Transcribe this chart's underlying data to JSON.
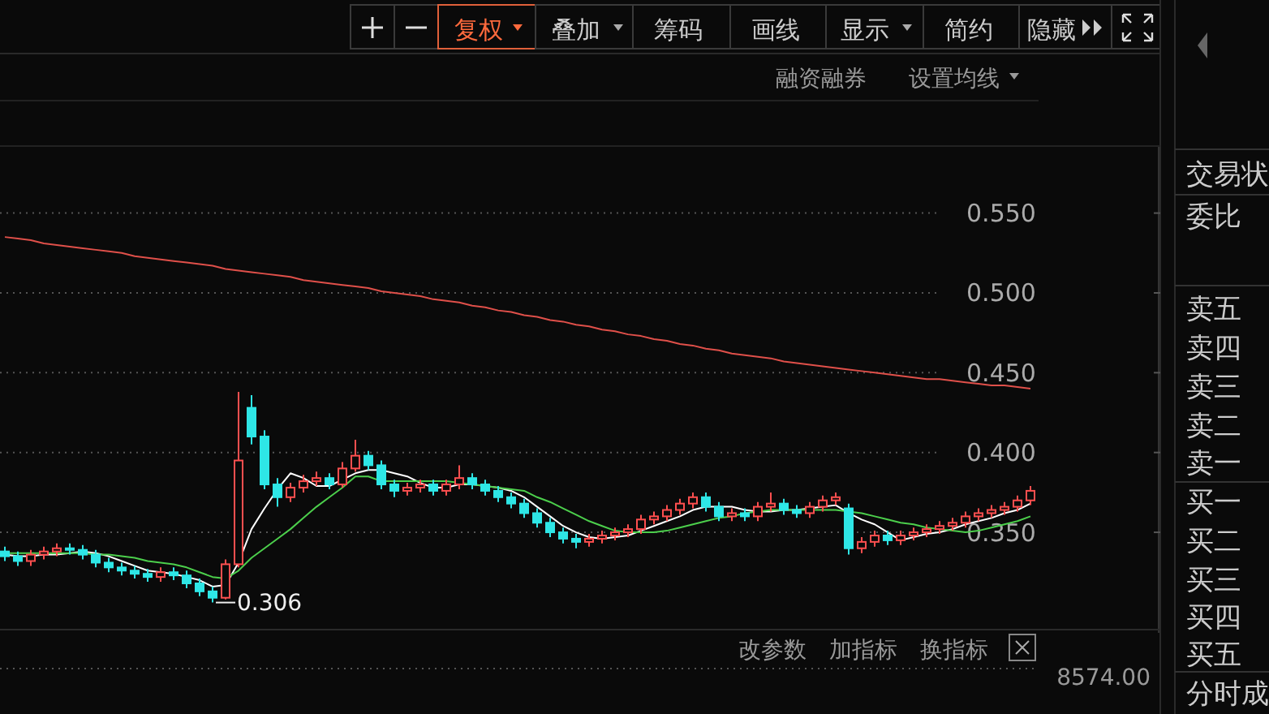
{
  "chart_data": {
    "type": "candlestick",
    "categories": [
      null,
      null,
      null,
      null,
      null,
      null,
      null,
      null,
      null,
      null,
      null,
      null,
      null,
      null,
      null,
      null,
      null,
      null,
      null,
      null,
      null,
      null,
      null,
      null,
      null,
      null,
      null,
      null,
      null,
      null,
      null,
      null,
      null,
      null,
      null,
      null,
      null,
      null,
      null,
      null,
      null,
      null,
      null,
      null,
      null,
      null,
      null,
      null,
      null,
      null,
      null,
      null,
      null,
      null,
      null,
      null,
      null,
      null,
      null,
      null,
      null,
      null,
      null,
      null,
      null,
      null,
      null,
      null,
      null,
      null,
      null,
      null,
      null,
      null,
      null,
      null,
      null,
      null,
      null,
      null
    ],
    "ohlc": [
      [
        0.338,
        0.341,
        0.332,
        0.335
      ],
      [
        0.335,
        0.338,
        0.329,
        0.332
      ],
      [
        0.332,
        0.339,
        0.329,
        0.336
      ],
      [
        0.336,
        0.341,
        0.333,
        0.338
      ],
      [
        0.338,
        0.343,
        0.335,
        0.34
      ],
      [
        0.34,
        0.343,
        0.336,
        0.339
      ],
      [
        0.339,
        0.342,
        0.333,
        0.336
      ],
      [
        0.336,
        0.339,
        0.328,
        0.331
      ],
      [
        0.331,
        0.334,
        0.325,
        0.328
      ],
      [
        0.328,
        0.331,
        0.323,
        0.326
      ],
      [
        0.326,
        0.329,
        0.321,
        0.324
      ],
      [
        0.324,
        0.327,
        0.319,
        0.322
      ],
      [
        0.322,
        0.328,
        0.319,
        0.325
      ],
      [
        0.325,
        0.328,
        0.32,
        0.323
      ],
      [
        0.323,
        0.326,
        0.315,
        0.318
      ],
      [
        0.318,
        0.321,
        0.31,
        0.313
      ],
      [
        0.313,
        0.316,
        0.306,
        0.309
      ],
      [
        0.309,
        0.333,
        0.308,
        0.33
      ],
      [
        0.33,
        0.438,
        0.328,
        0.395
      ],
      [
        0.428,
        0.436,
        0.405,
        0.41
      ],
      [
        0.41,
        0.414,
        0.377,
        0.38
      ],
      [
        0.38,
        0.384,
        0.366,
        0.372
      ],
      [
        0.372,
        0.381,
        0.369,
        0.378
      ],
      [
        0.378,
        0.386,
        0.375,
        0.382
      ],
      [
        0.382,
        0.388,
        0.379,
        0.384
      ],
      [
        0.384,
        0.387,
        0.377,
        0.38
      ],
      [
        0.38,
        0.394,
        0.378,
        0.39
      ],
      [
        0.39,
        0.408,
        0.388,
        0.398
      ],
      [
        0.398,
        0.401,
        0.389,
        0.392
      ],
      [
        0.392,
        0.395,
        0.377,
        0.38
      ],
      [
        0.38,
        0.383,
        0.372,
        0.376
      ],
      [
        0.376,
        0.381,
        0.373,
        0.378
      ],
      [
        0.378,
        0.383,
        0.375,
        0.38
      ],
      [
        0.38,
        0.383,
        0.373,
        0.376
      ],
      [
        0.376,
        0.383,
        0.373,
        0.38
      ],
      [
        0.38,
        0.392,
        0.377,
        0.384
      ],
      [
        0.384,
        0.387,
        0.377,
        0.38
      ],
      [
        0.38,
        0.383,
        0.373,
        0.376
      ],
      [
        0.376,
        0.379,
        0.369,
        0.372
      ],
      [
        0.372,
        0.375,
        0.365,
        0.368
      ],
      [
        0.368,
        0.371,
        0.359,
        0.362
      ],
      [
        0.362,
        0.365,
        0.353,
        0.356
      ],
      [
        0.356,
        0.359,
        0.347,
        0.35
      ],
      [
        0.35,
        0.353,
        0.343,
        0.346
      ],
      [
        0.346,
        0.349,
        0.34,
        0.344
      ],
      [
        0.344,
        0.349,
        0.341,
        0.346
      ],
      [
        0.346,
        0.351,
        0.343,
        0.348
      ],
      [
        0.348,
        0.353,
        0.345,
        0.35
      ],
      [
        0.35,
        0.355,
        0.347,
        0.352
      ],
      [
        0.352,
        0.361,
        0.349,
        0.358
      ],
      [
        0.358,
        0.363,
        0.355,
        0.36
      ],
      [
        0.36,
        0.367,
        0.357,
        0.364
      ],
      [
        0.364,
        0.371,
        0.361,
        0.368
      ],
      [
        0.368,
        0.375,
        0.365,
        0.372
      ],
      [
        0.372,
        0.375,
        0.363,
        0.366
      ],
      [
        0.366,
        0.369,
        0.357,
        0.36
      ],
      [
        0.36,
        0.365,
        0.357,
        0.362
      ],
      [
        0.362,
        0.365,
        0.357,
        0.36
      ],
      [
        0.36,
        0.369,
        0.357,
        0.366
      ],
      [
        0.366,
        0.375,
        0.363,
        0.368
      ],
      [
        0.368,
        0.371,
        0.361,
        0.364
      ],
      [
        0.364,
        0.367,
        0.359,
        0.362
      ],
      [
        0.362,
        0.369,
        0.359,
        0.366
      ],
      [
        0.366,
        0.373,
        0.363,
        0.37
      ],
      [
        0.37,
        0.375,
        0.367,
        0.372
      ],
      [
        0.365,
        0.368,
        0.336,
        0.34
      ],
      [
        0.34,
        0.347,
        0.337,
        0.344
      ],
      [
        0.344,
        0.351,
        0.341,
        0.348
      ],
      [
        0.348,
        0.351,
        0.342,
        0.345
      ],
      [
        0.345,
        0.351,
        0.342,
        0.348
      ],
      [
        0.348,
        0.353,
        0.345,
        0.35
      ],
      [
        0.35,
        0.355,
        0.347,
        0.352
      ],
      [
        0.352,
        0.357,
        0.349,
        0.354
      ],
      [
        0.354,
        0.359,
        0.351,
        0.356
      ],
      [
        0.356,
        0.363,
        0.353,
        0.36
      ],
      [
        0.36,
        0.365,
        0.357,
        0.362
      ],
      [
        0.362,
        0.367,
        0.359,
        0.364
      ],
      [
        0.364,
        0.369,
        0.361,
        0.366
      ],
      [
        0.366,
        0.373,
        0.363,
        0.37
      ],
      [
        0.37,
        0.379,
        0.367,
        0.376
      ]
    ],
    "colors": [
      "#2ee6e6",
      "#2ee6e6",
      "#ff4f4f",
      "#ff4f4f",
      "#ff4f4f",
      "#2ee6e6",
      "#2ee6e6",
      "#2ee6e6",
      "#2ee6e6",
      "#2ee6e6",
      "#2ee6e6",
      "#2ee6e6",
      "#ff4f4f",
      "#2ee6e6",
      "#2ee6e6",
      "#2ee6e6",
      "#2ee6e6",
      "#ff4f4f",
      "#ff4f4f",
      "#2ee6e6",
      "#2ee6e6",
      "#2ee6e6",
      "#ff4f4f",
      "#ff4f4f",
      "#ff4f4f",
      "#2ee6e6",
      "#ff4f4f",
      "#ff4f4f",
      "#2ee6e6",
      "#2ee6e6",
      "#2ee6e6",
      "#ff4f4f",
      "#ff4f4f",
      "#2ee6e6",
      "#ff4f4f",
      "#ff4f4f",
      "#2ee6e6",
      "#2ee6e6",
      "#2ee6e6",
      "#2ee6e6",
      "#2ee6e6",
      "#2ee6e6",
      "#2ee6e6",
      "#2ee6e6",
      "#2ee6e6",
      "#ff4f4f",
      "#ff4f4f",
      "#ff4f4f",
      "#ff4f4f",
      "#ff4f4f",
      "#ff4f4f",
      "#ff4f4f",
      "#ff4f4f",
      "#ff4f4f",
      "#2ee6e6",
      "#2ee6e6",
      "#ff4f4f",
      "#2ee6e6",
      "#ff4f4f",
      "#ff4f4f",
      "#2ee6e6",
      "#2ee6e6",
      "#ff4f4f",
      "#ff4f4f",
      "#ff4f4f",
      "#2ee6e6",
      "#ff4f4f",
      "#ff4f4f",
      "#2ee6e6",
      "#ff4f4f",
      "#ff4f4f",
      "#ff4f4f",
      "#ff4f4f",
      "#ff4f4f",
      "#ff4f4f",
      "#ff4f4f",
      "#ff4f4f",
      "#ff4f4f",
      "#ff4f4f",
      "#ff4f4f"
    ],
    "series": [
      {
        "type": "line",
        "color": "#ffffff",
        "values": [
          0.336,
          0.335,
          0.335,
          0.336,
          0.336,
          0.337,
          0.338,
          0.337,
          0.335,
          0.332,
          0.329,
          0.326,
          0.325,
          0.324,
          0.322,
          0.32,
          0.316,
          0.317,
          0.331,
          0.352,
          0.365,
          0.377,
          0.387,
          0.384,
          0.379,
          0.379,
          0.383,
          0.387,
          0.389,
          0.389,
          0.387,
          0.385,
          0.381,
          0.378,
          0.378,
          0.38,
          0.38,
          0.379,
          0.378,
          0.376,
          0.372,
          0.366,
          0.36,
          0.354,
          0.35,
          0.347,
          0.346,
          0.347,
          0.348,
          0.351,
          0.354,
          0.357,
          0.36,
          0.364,
          0.366,
          0.366,
          0.366,
          0.364,
          0.363,
          0.363,
          0.364,
          0.364,
          0.365,
          0.366,
          0.367,
          0.362,
          0.358,
          0.355,
          0.35,
          0.345,
          0.347,
          0.349,
          0.35,
          0.352,
          0.355,
          0.357,
          0.359,
          0.362,
          0.364,
          0.368
        ]
      },
      {
        "type": "line",
        "color": "#4ccf4c",
        "values": [
          0.337,
          0.337,
          0.337,
          0.337,
          0.337,
          0.337,
          0.337,
          0.336,
          0.336,
          0.335,
          0.334,
          0.332,
          0.331,
          0.33,
          0.328,
          0.325,
          0.322,
          0.321,
          0.326,
          0.334,
          0.34,
          0.346,
          0.352,
          0.359,
          0.366,
          0.372,
          0.378,
          0.385,
          0.385,
          0.382,
          0.382,
          0.382,
          0.382,
          0.382,
          0.382,
          0.381,
          0.38,
          0.379,
          0.378,
          0.377,
          0.376,
          0.372,
          0.369,
          0.365,
          0.361,
          0.357,
          0.354,
          0.351,
          0.35,
          0.35,
          0.35,
          0.351,
          0.353,
          0.355,
          0.357,
          0.359,
          0.36,
          0.362,
          0.363,
          0.364,
          0.364,
          0.364,
          0.364,
          0.364,
          0.364,
          0.363,
          0.362,
          0.36,
          0.358,
          0.356,
          0.355,
          0.353,
          0.352,
          0.351,
          0.35,
          0.351,
          0.353,
          0.355,
          0.357,
          0.36
        ]
      },
      {
        "type": "line",
        "color": "#e0504a",
        "values": [
          0.535,
          0.534,
          0.533,
          0.531,
          0.53,
          0.529,
          0.528,
          0.527,
          0.526,
          0.525,
          0.523,
          0.522,
          0.521,
          0.52,
          0.519,
          0.518,
          0.517,
          0.515,
          0.514,
          0.513,
          0.512,
          0.511,
          0.51,
          0.508,
          0.507,
          0.506,
          0.505,
          0.504,
          0.503,
          0.501,
          0.5,
          0.499,
          0.498,
          0.496,
          0.495,
          0.494,
          0.492,
          0.491,
          0.489,
          0.488,
          0.486,
          0.485,
          0.483,
          0.482,
          0.48,
          0.479,
          0.477,
          0.476,
          0.474,
          0.473,
          0.471,
          0.47,
          0.468,
          0.467,
          0.465,
          0.464,
          0.462,
          0.461,
          0.46,
          0.459,
          0.457,
          0.456,
          0.455,
          0.454,
          0.453,
          0.452,
          0.451,
          0.45,
          0.449,
          0.448,
          0.447,
          0.446,
          0.446,
          0.445,
          0.444,
          0.443,
          0.442,
          0.442,
          0.441,
          0.44
        ]
      }
    ],
    "ylim": [
      0.287,
      0.592
    ],
    "yticks": [
      {
        "value": 0.35,
        "label": "0.350"
      },
      {
        "value": 0.4,
        "label": "0.400"
      },
      {
        "value": 0.45,
        "label": "0.450"
      },
      {
        "value": 0.5,
        "label": "0.500"
      },
      {
        "value": 0.55,
        "label": "0.550"
      }
    ],
    "grid": "y",
    "annotations": [
      "0.306",
      "复权",
      "叠加",
      "筹码",
      "画线",
      "显示",
      "简约",
      "隐藏",
      "融资融券",
      "设置均线",
      "改参数",
      "加指标",
      "换指标",
      "8574.00",
      "交易状",
      "委比",
      "卖五",
      "卖四",
      "卖三",
      "卖二",
      "卖一",
      "买一",
      "买二",
      "买三",
      "买四",
      "买五",
      "分时成"
    ]
  }
}
